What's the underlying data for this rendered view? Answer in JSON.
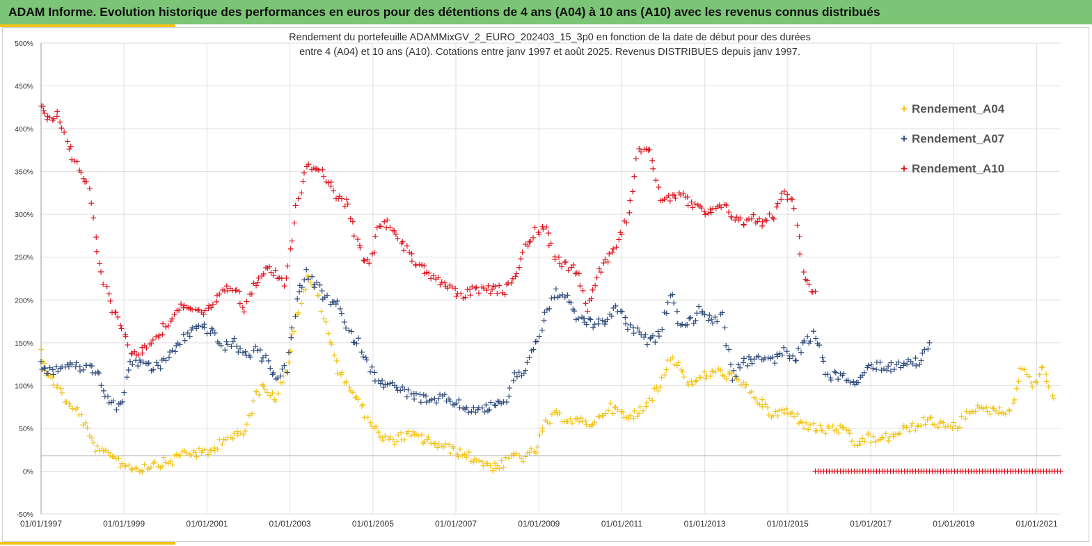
{
  "header": {
    "title": "ADAM Informe. Evolution historique des performances en euros pour des détentions de 4 ans (A04) à 10 ans (A10) avec les revenus connus distribués"
  },
  "colors": {
    "banner": "#7cc576",
    "accent": "#f2c418",
    "A04": "#f2c418",
    "A07": "#2e4a7a",
    "A10": "#e0141e"
  },
  "chart_data": {
    "type": "scatter",
    "title_line1": "Rendement du portefeuille ADAMMixGV_2_EURO_202403_15_3p0 en fonction de la date de début pour des durées",
    "title_line2": "entre 4 (A04) et 10 ans (A10). Cotations entre janv 1997 et août 2025. Revenus DISTRIBUES depuis janv 1997.",
    "x_type": "date",
    "x_range": [
      "1997-01-01",
      "2021-07-31"
    ],
    "x_ticks": [
      "01/01/1997",
      "01/01/1999",
      "01/01/2001",
      "01/01/2003",
      "01/01/2005",
      "01/01/2007",
      "01/01/2009",
      "01/01/2011",
      "01/01/2013",
      "01/01/2015",
      "01/01/2017",
      "01/01/2019",
      "01/01/2021"
    ],
    "y_range": [
      -50,
      500
    ],
    "y_ticks": [
      -50,
      0,
      50,
      100,
      150,
      200,
      250,
      300,
      350,
      400,
      450,
      500
    ],
    "y_tick_labels": [
      "-50%",
      "0%",
      "50%",
      "100%",
      "150%",
      "200%",
      "250%",
      "300%",
      "350%",
      "400%",
      "450%",
      "500%"
    ],
    "y_unit": "%",
    "reference_line_y": 18,
    "grid": true,
    "legend_position": "top-right",
    "marker": "+",
    "series": [
      {
        "name": "Rendement_A04",
        "color": "#f2c418",
        "x": [
          "1997-01-01",
          "1997-03-01",
          "1997-06-01",
          "1997-09-01",
          "1997-12-01",
          "1998-03-01",
          "1998-06-01",
          "1998-09-01",
          "1998-12-01",
          "1999-03-01",
          "1999-06-01",
          "1999-09-01",
          "1999-12-01",
          "2000-03-01",
          "2000-06-01",
          "2000-09-01",
          "2000-12-01",
          "2001-03-01",
          "2001-06-01",
          "2001-09-01",
          "2001-12-01",
          "2002-03-01",
          "2002-06-01",
          "2002-09-01",
          "2002-12-01",
          "2003-03-01",
          "2003-06-01",
          "2003-09-01",
          "2003-12-01",
          "2004-03-01",
          "2004-06-01",
          "2004-09-01",
          "2004-12-01",
          "2005-03-01",
          "2005-06-01",
          "2005-09-01",
          "2005-12-01",
          "2006-03-01",
          "2006-06-01",
          "2006-09-01",
          "2006-12-01",
          "2007-03-01",
          "2007-06-01",
          "2007-09-01",
          "2007-12-01",
          "2008-03-01",
          "2008-06-01",
          "2008-09-01",
          "2008-12-01",
          "2009-03-01",
          "2009-06-01",
          "2009-09-01",
          "2009-12-01",
          "2010-03-01",
          "2010-06-01",
          "2010-09-01",
          "2010-12-01",
          "2011-03-01",
          "2011-06-01",
          "2011-09-01",
          "2011-12-01",
          "2012-03-01",
          "2012-06-01",
          "2012-09-01",
          "2012-12-01",
          "2013-03-01",
          "2013-06-01",
          "2013-09-01",
          "2013-12-01",
          "2014-03-01",
          "2014-06-01",
          "2014-09-01",
          "2014-12-01",
          "2015-03-01",
          "2015-06-01",
          "2015-09-01",
          "2015-12-01",
          "2016-03-01",
          "2016-06-01",
          "2016-09-01",
          "2016-12-01",
          "2017-03-01",
          "2017-06-01",
          "2017-09-01",
          "2017-12-01",
          "2018-03-01",
          "2018-06-01",
          "2018-09-01",
          "2018-12-01",
          "2019-03-01",
          "2019-06-01",
          "2019-09-01",
          "2019-12-01",
          "2020-03-01",
          "2020-06-01",
          "2020-09-01",
          "2020-12-01",
          "2021-03-01",
          "2021-06-01"
        ],
        "y": [
          140,
          110,
          100,
          75,
          70,
          40,
          20,
          22,
          10,
          5,
          3,
          8,
          10,
          12,
          22,
          22,
          20,
          25,
          40,
          40,
          45,
          90,
          100,
          85,
          120,
          180,
          225,
          210,
          160,
          120,
          100,
          80,
          60,
          40,
          35,
          40,
          42,
          38,
          35,
          28,
          25,
          20,
          15,
          10,
          5,
          8,
          20,
          15,
          25,
          55,
          65,
          62,
          58,
          55,
          60,
          75,
          70,
          60,
          70,
          85,
          100,
          135,
          120,
          100,
          110,
          115,
          115,
          110,
          100,
          90,
          75,
          65,
          70,
          65,
          55,
          50,
          48,
          50,
          45,
          30,
          40,
          35,
          40,
          45,
          50,
          55,
          60,
          55,
          50,
          55,
          75,
          70,
          72,
          70,
          75,
          125,
          100,
          120,
          85
        ]
      },
      {
        "name": "Rendement_A07",
        "color": "#2e4a7a",
        "x": [
          "1997-01-01",
          "1997-03-01",
          "1997-06-01",
          "1997-09-01",
          "1997-12-01",
          "1998-03-01",
          "1998-06-01",
          "1998-09-01",
          "1998-12-01",
          "1999-03-01",
          "1999-06-01",
          "1999-09-01",
          "1999-12-01",
          "2000-03-01",
          "2000-06-01",
          "2000-09-01",
          "2000-12-01",
          "2001-03-01",
          "2001-06-01",
          "2001-09-01",
          "2001-12-01",
          "2002-03-01",
          "2002-06-01",
          "2002-09-01",
          "2002-12-01",
          "2003-03-01",
          "2003-06-01",
          "2003-09-01",
          "2003-12-01",
          "2004-03-01",
          "2004-06-01",
          "2004-09-01",
          "2004-12-01",
          "2005-03-01",
          "2005-06-01",
          "2005-09-01",
          "2005-12-01",
          "2006-03-01",
          "2006-06-01",
          "2006-09-01",
          "2006-12-01",
          "2007-03-01",
          "2007-06-01",
          "2007-09-01",
          "2007-12-01",
          "2008-03-01",
          "2008-06-01",
          "2008-09-01",
          "2008-12-01",
          "2009-03-01",
          "2009-06-01",
          "2009-09-01",
          "2009-12-01",
          "2010-03-01",
          "2010-06-01",
          "2010-09-01",
          "2010-12-01",
          "2011-03-01",
          "2011-06-01",
          "2011-09-01",
          "2011-12-01",
          "2012-03-01",
          "2012-06-01",
          "2012-09-01",
          "2012-12-01",
          "2013-03-01",
          "2013-06-01",
          "2013-09-01",
          "2013-12-01",
          "2014-03-01",
          "2014-06-01",
          "2014-09-01",
          "2014-12-01",
          "2015-03-01",
          "2015-06-01",
          "2015-09-01",
          "2015-12-01",
          "2016-03-01",
          "2016-06-01",
          "2016-09-01",
          "2016-12-01",
          "2017-03-01",
          "2017-06-01",
          "2017-09-01",
          "2017-12-01",
          "2018-03-01",
          "2018-06-01"
        ],
        "y": [
          125,
          115,
          120,
          125,
          120,
          125,
          110,
          80,
          75,
          125,
          130,
          120,
          125,
          140,
          155,
          165,
          170,
          160,
          145,
          150,
          135,
          140,
          130,
          110,
          120,
          200,
          230,
          215,
          200,
          195,
          160,
          150,
          120,
          105,
          100,
          95,
          90,
          85,
          80,
          85,
          82,
          75,
          72,
          70,
          80,
          78,
          110,
          120,
          150,
          180,
          210,
          200,
          180,
          175,
          170,
          180,
          190,
          170,
          160,
          150,
          160,
          210,
          170,
          175,
          190,
          175,
          180,
          110,
          125,
          130,
          135,
          130,
          140,
          130,
          150,
          160,
          115,
          110,
          110,
          100,
          120,
          125,
          120,
          125,
          130,
          125,
          150
        ]
      },
      {
        "name": "Rendement_A10",
        "color": "#e0141e",
        "x": [
          "1997-01-01",
          "1997-03-01",
          "1997-06-01",
          "1997-09-01",
          "1997-12-01",
          "1998-03-01",
          "1998-06-01",
          "1998-09-01",
          "1998-12-01",
          "1999-03-01",
          "1999-06-01",
          "1999-09-01",
          "1999-12-01",
          "2000-03-01",
          "2000-06-01",
          "2000-09-01",
          "2000-12-01",
          "2001-03-01",
          "2001-06-01",
          "2001-09-01",
          "2001-12-01",
          "2002-03-01",
          "2002-06-01",
          "2002-09-01",
          "2002-12-01",
          "2003-03-01",
          "2003-06-01",
          "2003-09-01",
          "2003-12-01",
          "2004-03-01",
          "2004-06-01",
          "2004-09-01",
          "2004-12-01",
          "2005-03-01",
          "2005-06-01",
          "2005-09-01",
          "2005-12-01",
          "2006-03-01",
          "2006-06-01",
          "2006-09-01",
          "2006-12-01",
          "2007-03-01",
          "2007-06-01",
          "2007-09-01",
          "2007-12-01",
          "2008-03-01",
          "2008-06-01",
          "2008-09-01",
          "2008-12-01",
          "2009-03-01",
          "2009-06-01",
          "2009-09-01",
          "2009-12-01",
          "2010-03-01",
          "2010-06-01",
          "2010-09-01",
          "2010-12-01",
          "2011-03-01",
          "2011-06-01",
          "2011-09-01",
          "2011-12-01",
          "2012-03-01",
          "2012-06-01",
          "2012-09-01",
          "2012-12-01",
          "2013-03-01",
          "2013-06-01",
          "2013-09-01",
          "2013-12-01",
          "2014-03-01",
          "2014-06-01",
          "2014-09-01",
          "2014-12-01",
          "2015-03-01",
          "2015-06-01",
          "2015-09-01"
        ],
        "y": [
          430,
          410,
          420,
          380,
          350,
          330,
          240,
          195,
          175,
          140,
          140,
          150,
          165,
          180,
          195,
          190,
          180,
          195,
          210,
          215,
          190,
          220,
          240,
          230,
          220,
          310,
          360,
          355,
          340,
          320,
          310,
          260,
          240,
          290,
          290,
          270,
          250,
          240,
          230,
          220,
          210,
          205,
          210,
          210,
          215,
          210,
          230,
          260,
          280,
          280,
          250,
          240,
          235,
          190,
          230,
          250,
          270,
          300,
          380,
          370,
          320,
          320,
          325,
          310,
          305,
          300,
          310,
          300,
          290,
          295,
          290,
          300,
          330,
          310,
          220,
          210
        ]
      },
      {
        "name": "Rendement_A10 (zéro)",
        "color": "#e0141e",
        "x_range": [
          "2015-09-01",
          "2021-07-31"
        ],
        "y_constant": 0
      }
    ]
  }
}
